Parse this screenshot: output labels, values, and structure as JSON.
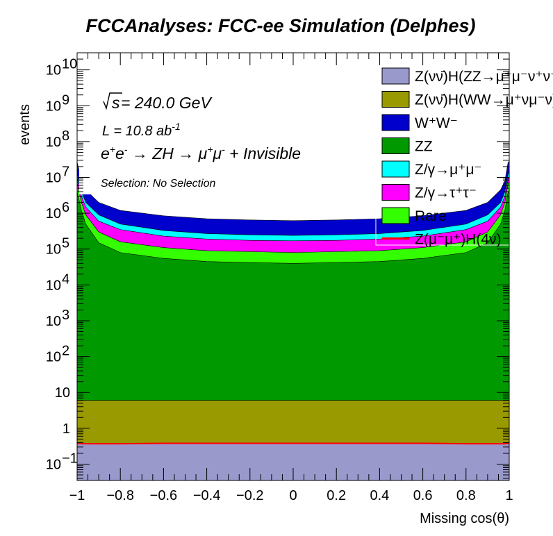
{
  "chart_data": {
    "type": "area",
    "stacked": true,
    "title": "FCCAnalyses: FCC-ee Simulation (Delphes)",
    "xlabel": "Missing cos(θ)",
    "ylabel": "events",
    "xlim": [
      -1,
      1
    ],
    "ylim": [
      0.035,
      30000000000
    ],
    "yscale": "log",
    "x_ticks": [
      "−1",
      "−0.8",
      "−0.6",
      "−0.4",
      "−0.2",
      "0",
      "0.2",
      "0.4",
      "0.6",
      "0.8",
      "1"
    ],
    "y_ticks": [
      {
        "base": "10",
        "exp": "−1",
        "value": 0.1
      },
      {
        "base": "1",
        "exp": "",
        "value": 1
      },
      {
        "base": "10",
        "exp": "",
        "value": 10
      },
      {
        "base": "10",
        "exp": "2",
        "value": 100
      },
      {
        "base": "10",
        "exp": "3",
        "value": 1000
      },
      {
        "base": "10",
        "exp": "4",
        "value": 10000
      },
      {
        "base": "10",
        "exp": "5",
        "value": 100000
      },
      {
        "base": "10",
        "exp": "6",
        "value": 1000000
      },
      {
        "base": "10",
        "exp": "7",
        "value": 10000000
      },
      {
        "base": "10",
        "exp": "8",
        "value": 100000000
      },
      {
        "base": "10",
        "exp": "9",
        "value": 1000000000
      },
      {
        "base": "10",
        "exp": "10",
        "value": 10000000000
      }
    ],
    "x": [
      -0.995,
      -0.98,
      -0.96,
      -0.9,
      -0.8,
      -0.6,
      -0.4,
      -0.2,
      0,
      0.2,
      0.4,
      0.6,
      0.8,
      0.9,
      0.96,
      0.98,
      0.995
    ],
    "series": [
      {
        "name": "Z(νν̄)H(ZZ→μ⁺μ⁻ν⁺ν⁻)",
        "color": "#9999cc",
        "cumulative": [
          0.38,
          0.37,
          0.37,
          0.37,
          0.37,
          0.38,
          0.38,
          0.38,
          0.38,
          0.38,
          0.38,
          0.38,
          0.37,
          0.37,
          0.37,
          0.37,
          0.38
        ]
      },
      {
        "name": "Z(νν̄)H(WW→μ⁺νμ⁻ν)",
        "color": "#999900",
        "cumulative": [
          6,
          6,
          6,
          6,
          6,
          6,
          6,
          6,
          6,
          6,
          6,
          6,
          6,
          6,
          6,
          6,
          6
        ]
      },
      {
        "name": "ZZ",
        "color": "#009900",
        "cumulative": [
          4000000,
          1200000,
          500000,
          150000,
          80000,
          55000,
          45000,
          42000,
          40000,
          42000,
          45000,
          55000,
          80000,
          150000,
          500000,
          1200000,
          4000000
        ]
      },
      {
        "name": "Rare",
        "color": "#33ff00",
        "cumulative": [
          7000000,
          2000000,
          900000,
          300000,
          160000,
          110000,
          90000,
          85000,
          80000,
          85000,
          90000,
          110000,
          160000,
          300000,
          900000,
          2000000,
          7000000
        ]
      },
      {
        "name": "Z/γ→τ⁺τ⁻",
        "color": "#ff00ff",
        "cumulative": [
          10000000,
          3000000,
          1500000,
          600000,
          350000,
          230000,
          190000,
          175000,
          170000,
          175000,
          190000,
          230000,
          350000,
          600000,
          1500000,
          3000000,
          10000000
        ]
      },
      {
        "name": "Z/γ→μ⁺μ⁻",
        "color": "#00ffff",
        "cumulative": [
          13000000,
          4000000,
          2000000,
          900000,
          500000,
          330000,
          270000,
          250000,
          240000,
          250000,
          270000,
          330000,
          500000,
          900000,
          2000000,
          4000000,
          13000000
        ]
      },
      {
        "name": "W⁺W⁻",
        "color": "#0000cc",
        "cumulative": [
          27000000,
          8000000,
          4500000,
          2000000,
          1200000,
          850000,
          700000,
          650000,
          620000,
          650000,
          700000,
          850000,
          1200000,
          2000000,
          4500000,
          8000000,
          27000000
        ]
      }
    ],
    "signal": {
      "name": "Z(μ⁻μ⁺)H(4ν)",
      "color": "#ff0000",
      "values": [
        0.38,
        0.37,
        0.37,
        0.37,
        0.37,
        0.38,
        0.38,
        0.38,
        0.38,
        0.38,
        0.38,
        0.38,
        0.37,
        0.37,
        0.37,
        0.37,
        0.38
      ]
    },
    "annotations": {
      "sqrt_s": "s",
      "energy": " = 240.0 GeV",
      "lumi_prefix": "L = 10.8 ab",
      "lumi_exp": "-1",
      "process_a": "e",
      "process_b": "e",
      "process_c": " → ZH → μ",
      "process_d": "μ",
      "process_e": " + Invisible",
      "sup_plus": "+",
      "sup_minus": "-",
      "selection": "Selection: No Selection"
    },
    "legend": [
      {
        "label": "Z(νν̄)H(ZZ→μ⁺μ⁻ν⁺ν⁻)",
        "color": "#9999cc",
        "style": "fill"
      },
      {
        "label": "Z(νν̄)H(WW→μ⁺νμ⁻ν)",
        "color": "#999900",
        "style": "fill"
      },
      {
        "label": "W⁺W⁻",
        "color": "#0000cc",
        "style": "fill"
      },
      {
        "label": "ZZ",
        "color": "#009900",
        "style": "fill"
      },
      {
        "label": "Z/γ→μ⁺μ⁻",
        "color": "#00ffff",
        "style": "fill"
      },
      {
        "label": "Z/γ→τ⁺τ⁻",
        "color": "#ff00ff",
        "style": "fill"
      },
      {
        "label": "Rare",
        "color": "#33ff00",
        "style": "fill"
      },
      {
        "label": "Z(μ⁻μ⁺)H(4ν)",
        "color": "#ff0000",
        "style": "line"
      }
    ],
    "legend_position": "top-right",
    "grid": false
  }
}
